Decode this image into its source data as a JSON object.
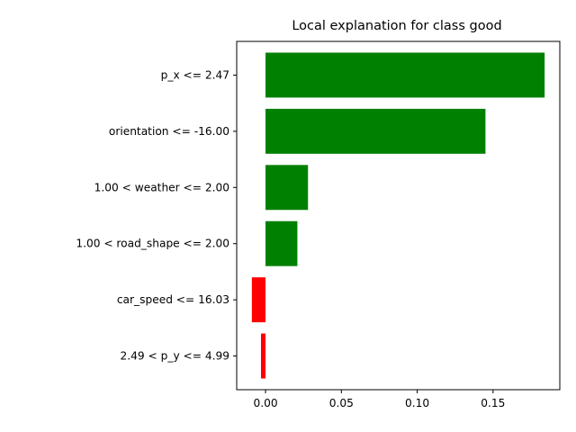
{
  "chart_data": {
    "type": "bar",
    "orientation": "horizontal",
    "title": "Local explanation for class good",
    "xlabel": "",
    "ylabel": "",
    "categories": [
      "p_x <= 2.47",
      "orientation <= -16.00",
      "1.00 < weather <= 2.00",
      "1.00 < road_shape <= 2.00",
      "car_speed <= 16.03",
      "2.49 < p_y <= 4.99"
    ],
    "values": [
      0.184,
      0.145,
      0.028,
      0.021,
      -0.009,
      -0.003
    ],
    "xlim": [
      -0.019,
      0.194
    ],
    "xticks": [
      0.0,
      0.05,
      0.1,
      0.15
    ],
    "xtick_labels": [
      "0.00",
      "0.05",
      "0.10",
      "0.15"
    ],
    "positive_color": "#008000",
    "negative_color": "#ff0000",
    "grid": false
  }
}
